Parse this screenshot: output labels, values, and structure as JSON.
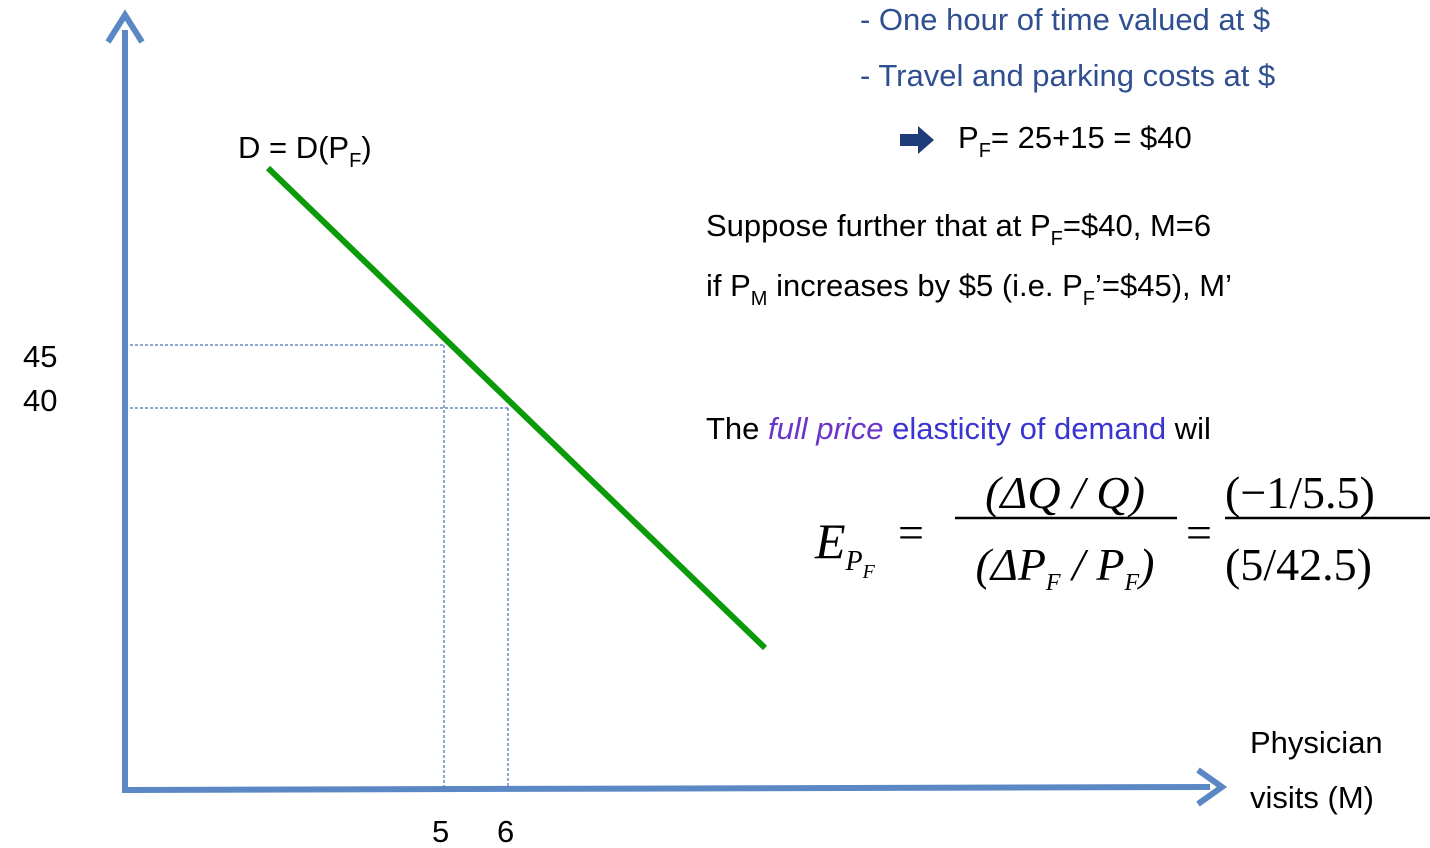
{
  "intro_lines": [
    "- One hour of time valued at $",
    "- Travel and parking costs at $"
  ],
  "full_price": {
    "symbol": "P",
    "sub": "F",
    "rest": "= 25+15 = $40"
  },
  "suppose": [
    "Suppose further that at P",
    "F",
    "=$40, M=6"
  ],
  "increase": [
    "if P",
    "M",
    " increases by $5 (i.e. P",
    "F",
    "’=$45), M’"
  ],
  "elasticity": {
    "before": "The ",
    "italic": "full price",
    "highlight": " elasticity of demand",
    "after": " wil"
  },
  "formula": {
    "lhs": "E",
    "lhs_sub": "P",
    "lhs_subsub": "F",
    "eq": "=",
    "num1": "(ΔQ / Q)",
    "den1_a": "(ΔP",
    "den1_sub1": "F",
    "den1_b": " / P",
    "den1_sub2": "F",
    "den1_c": ")",
    "num2": "(−1/5.5)",
    "den2": "(5/42.5)"
  },
  "demand_label": [
    "D = D(P",
    "F",
    ")"
  ],
  "y_labels": [
    "45",
    "40"
  ],
  "x_labels": [
    "5",
    "6"
  ],
  "x_axis_label": [
    "Physician",
    "visits (M)"
  ]
}
